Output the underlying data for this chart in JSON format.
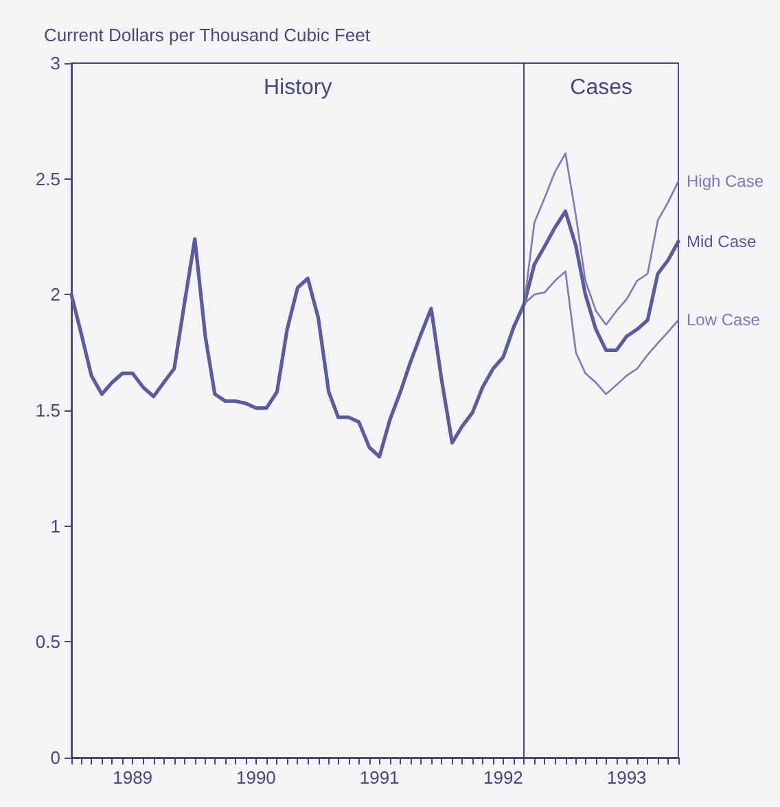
{
  "chart_data": {
    "type": "line",
    "ylabel": "Current Dollars per Thousand Cubic Feet",
    "ylim": [
      0,
      3
    ],
    "yticks": [
      0,
      0.5,
      1,
      1.5,
      2,
      2.5,
      3
    ],
    "xlim": [
      "1989-01",
      "1993-12"
    ],
    "xticks": [
      {
        "value": "1989-01",
        "label": null
      },
      {
        "value": "1989-02",
        "label": null
      },
      {
        "value": "1989-03",
        "label": null
      },
      {
        "value": "1989-04",
        "label": null
      },
      {
        "value": "1989-05",
        "label": null
      },
      {
        "value": "1989-06",
        "label": null
      },
      {
        "value": "1989-07",
        "label": "1989"
      },
      {
        "value": "1989-08",
        "label": null
      },
      {
        "value": "1989-09",
        "label": null
      },
      {
        "value": "1989-10",
        "label": null
      },
      {
        "value": "1989-11",
        "label": null
      },
      {
        "value": "1989-12",
        "label": null
      },
      {
        "value": "1990-01",
        "label": null
      },
      {
        "value": "1990-02",
        "label": null
      },
      {
        "value": "1990-03",
        "label": null
      },
      {
        "value": "1990-04",
        "label": null
      },
      {
        "value": "1990-05",
        "label": null
      },
      {
        "value": "1990-06",
        "label": null
      },
      {
        "value": "1990-07",
        "label": "1990"
      },
      {
        "value": "1990-08",
        "label": null
      },
      {
        "value": "1990-09",
        "label": null
      },
      {
        "value": "1990-10",
        "label": null
      },
      {
        "value": "1990-11",
        "label": null
      },
      {
        "value": "1990-12",
        "label": null
      },
      {
        "value": "1991-01",
        "label": null
      },
      {
        "value": "1991-02",
        "label": null
      },
      {
        "value": "1991-03",
        "label": null
      },
      {
        "value": "1991-04",
        "label": null
      },
      {
        "value": "1991-05",
        "label": null
      },
      {
        "value": "1991-06",
        "label": null
      },
      {
        "value": "1991-07",
        "label": "1991"
      },
      {
        "value": "1991-08",
        "label": null
      },
      {
        "value": "1991-09",
        "label": null
      },
      {
        "value": "1991-10",
        "label": null
      },
      {
        "value": "1991-11",
        "label": null
      },
      {
        "value": "1991-12",
        "label": null
      },
      {
        "value": "1992-01",
        "label": null
      },
      {
        "value": "1992-02",
        "label": null
      },
      {
        "value": "1992-03",
        "label": null
      },
      {
        "value": "1992-04",
        "label": null
      },
      {
        "value": "1992-05",
        "label": null
      },
      {
        "value": "1992-06",
        "label": null
      },
      {
        "value": "1992-07",
        "label": "1992"
      },
      {
        "value": "1992-08",
        "label": null
      },
      {
        "value": "1992-09",
        "label": null
      },
      {
        "value": "1992-10",
        "label": null
      },
      {
        "value": "1992-11",
        "label": null
      },
      {
        "value": "1992-12",
        "label": null
      },
      {
        "value": "1993-01",
        "label": null
      },
      {
        "value": "1993-02",
        "label": null
      },
      {
        "value": "1993-03",
        "label": null
      },
      {
        "value": "1993-04",
        "label": null
      },
      {
        "value": "1993-05",
        "label": null
      },
      {
        "value": "1993-06",
        "label": null
      },
      {
        "value": "1993-07",
        "label": "1993"
      },
      {
        "value": "1993-08",
        "label": null
      },
      {
        "value": "1993-09",
        "label": null
      },
      {
        "value": "1993-10",
        "label": null
      },
      {
        "value": "1993-11",
        "label": null
      },
      {
        "value": "1993-12",
        "label": null
      }
    ],
    "x": [
      "1989-01",
      "1989-02",
      "1989-03",
      "1989-04",
      "1989-05",
      "1989-06",
      "1989-07",
      "1989-08",
      "1989-09",
      "1989-10",
      "1989-11",
      "1989-12",
      "1990-01",
      "1990-02",
      "1990-03",
      "1990-04",
      "1990-05",
      "1990-06",
      "1990-07",
      "1990-08",
      "1990-09",
      "1990-10",
      "1990-11",
      "1990-12",
      "1991-01",
      "1991-02",
      "1991-03",
      "1991-04",
      "1991-05",
      "1991-06",
      "1991-07",
      "1991-08",
      "1991-09",
      "1991-10",
      "1991-11",
      "1991-12",
      "1992-01",
      "1992-02",
      "1992-03",
      "1992-04",
      "1992-05",
      "1992-06",
      "1992-07",
      "1992-08",
      "1992-09",
      "1992-10",
      "1992-11",
      "1992-12",
      "1993-01",
      "1993-02",
      "1993-03",
      "1993-04",
      "1993-05",
      "1993-06",
      "1993-07",
      "1993-08",
      "1993-09",
      "1993-10",
      "1993-11",
      "1993-12"
    ],
    "series": [
      {
        "name": "Mid Case",
        "color": "#5b5b9e",
        "values": [
          2.0,
          1.82,
          1.65,
          1.57,
          1.62,
          1.66,
          1.66,
          1.6,
          1.56,
          1.62,
          1.68,
          1.96,
          2.24,
          1.82,
          1.57,
          1.54,
          1.54,
          1.53,
          1.51,
          1.51,
          1.58,
          1.85,
          2.03,
          2.07,
          1.9,
          1.58,
          1.47,
          1.47,
          1.45,
          1.34,
          1.3,
          1.46,
          1.58,
          1.71,
          1.83,
          1.94,
          1.63,
          1.36,
          1.43,
          1.49,
          1.6,
          1.68,
          1.73,
          1.86,
          1.96,
          2.13,
          2.21,
          2.29,
          2.36,
          2.21,
          2.0,
          1.85,
          1.76,
          1.76,
          1.82,
          1.85,
          1.89,
          2.09,
          2.15,
          2.23
        ]
      },
      {
        "name": "Low Case",
        "color": "#7a7ab4",
        "x": [
          "1992-09",
          "1992-10",
          "1992-11",
          "1992-12",
          "1993-01",
          "1993-02",
          "1993-03",
          "1993-04",
          "1993-05",
          "1993-06",
          "1993-07",
          "1993-08",
          "1993-09",
          "1993-10",
          "1993-11",
          "1993-12"
        ],
        "values": [
          1.96,
          2.0,
          2.01,
          2.06,
          2.1,
          1.75,
          1.66,
          1.62,
          1.57,
          1.61,
          1.65,
          1.68,
          1.74,
          1.79,
          1.84,
          1.89
        ]
      },
      {
        "name": "High Case",
        "color": "#7a7ab4",
        "x": [
          "1992-09",
          "1992-10",
          "1992-11",
          "1992-12",
          "1993-01",
          "1993-02",
          "1993-03",
          "1993-04",
          "1993-05",
          "1993-06",
          "1993-07",
          "1993-08",
          "1993-09",
          "1993-10",
          "1993-11",
          "1993-12"
        ],
        "values": [
          1.96,
          2.31,
          2.42,
          2.53,
          2.61,
          2.34,
          2.06,
          1.93,
          1.87,
          1.93,
          1.98,
          2.06,
          2.09,
          2.32,
          2.4,
          2.49
        ]
      }
    ],
    "ref_lines": [
      {
        "axis": "x",
        "value": "1992-09",
        "color": "#48487a"
      }
    ],
    "annotations": [
      "History",
      "Cases"
    ],
    "grid": false,
    "legend": false,
    "marker": "none"
  }
}
